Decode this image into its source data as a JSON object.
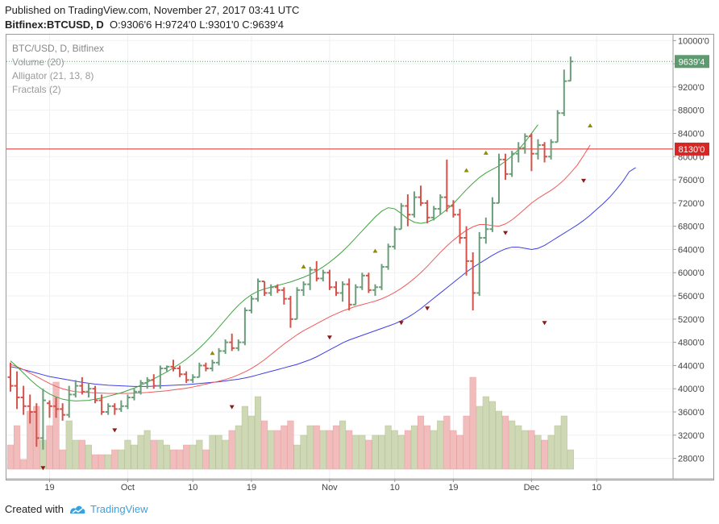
{
  "header": {
    "published": "Published on TradingView.com, November 27, 2017 03:41 UTC",
    "symbol": "Bitfinex:BTCUSD, D",
    "ohlc": "O:9306'6 H:9724'0 L:9301'0 C:9639'4"
  },
  "legend": {
    "title": "BTC/USD, D, Bitfinex",
    "items": [
      "Volume (20)",
      "Alligator (21, 13, 8)",
      "Fractals (2)"
    ]
  },
  "footer": {
    "created_with": "Created with",
    "brand": "TradingView"
  },
  "colors": {
    "up": "#6a9e7a",
    "down": "#d3534a",
    "jaw": "#3f3fe6",
    "teeth": "#f05a5a",
    "lips": "#3fa33f",
    "hline": "#d62626",
    "last": "#5e9a6f"
  },
  "chart_data": {
    "type": "bar",
    "title": "BTC/USD, D, Bitfinex",
    "y_ticks": [
      "10000'0",
      "9600'0",
      "9200'0",
      "8800'0",
      "8400'0",
      "8000'0",
      "7600'0",
      "7200'0",
      "6800'0",
      "6400'0",
      "6000'0",
      "5600'0",
      "5200'0",
      "4800'0",
      "4400'0",
      "4000'0",
      "3600'0",
      "3200'0",
      "2800'0"
    ],
    "x_ticks": [
      "19",
      "Oct",
      "10",
      "19",
      "Nov",
      "10",
      "19",
      "Dec",
      "10"
    ],
    "ylim": [
      2500,
      10050
    ],
    "x_tick_days": [
      6,
      18,
      28,
      37,
      49,
      59,
      68,
      80,
      90
    ],
    "price_labels": [
      {
        "text": "9639'4",
        "value": 9639,
        "color": "#5e9a6f"
      },
      {
        "text": "8130'0",
        "value": 8130,
        "color": "#d62626"
      }
    ],
    "horizontal_line": 8130,
    "ohlc": [
      [
        4200,
        4450,
        3950,
        4050
      ],
      [
        4050,
        4300,
        3650,
        3850
      ],
      [
        3850,
        4050,
        3550,
        3700
      ],
      [
        3700,
        3900,
        3400,
        3600
      ],
      [
        3600,
        3750,
        3000,
        3150
      ],
      [
        3150,
        4000,
        2950,
        3800
      ],
      [
        3750,
        3800,
        3500,
        3700
      ],
      [
        3700,
        3850,
        3500,
        3650
      ],
      [
        3650,
        3750,
        3450,
        3550
      ],
      [
        3550,
        4050,
        3500,
        3900
      ],
      [
        3900,
        4150,
        3850,
        4050
      ],
      [
        4050,
        4200,
        3900,
        3950
      ],
      [
        3950,
        4100,
        3850,
        4000
      ],
      [
        4000,
        4050,
        3750,
        3800
      ],
      [
        3800,
        3900,
        3550,
        3600
      ],
      [
        3600,
        3750,
        3550,
        3700
      ],
      [
        3700,
        3750,
        3550,
        3650
      ],
      [
        3650,
        3800,
        3600,
        3700
      ],
      [
        3700,
        3900,
        3650,
        3850
      ],
      [
        3850,
        4000,
        3800,
        3950
      ],
      [
        3950,
        4150,
        3900,
        4100
      ],
      [
        4100,
        4200,
        4000,
        4150
      ],
      [
        4150,
        4250,
        4000,
        4050
      ],
      [
        4050,
        4400,
        4000,
        4350
      ],
      [
        4350,
        4400,
        4300,
        4380
      ],
      [
        4380,
        4500,
        4300,
        4350
      ],
      [
        4350,
        4400,
        4200,
        4250
      ],
      [
        4250,
        4300,
        4100,
        4150
      ],
      [
        4150,
        4250,
        4100,
        4200
      ],
      [
        4200,
        4450,
        4200,
        4400
      ],
      [
        4400,
        4450,
        4300,
        4350
      ],
      [
        4350,
        4500,
        4300,
        4450
      ],
      [
        4450,
        4700,
        4400,
        4650
      ],
      [
        4650,
        4850,
        4600,
        4800
      ],
      [
        4800,
        4950,
        4650,
        4700
      ],
      [
        4700,
        4850,
        4650,
        4800
      ],
      [
        4800,
        5400,
        4750,
        5350
      ],
      [
        5350,
        5600,
        5300,
        5550
      ],
      [
        5550,
        5900,
        5500,
        5850
      ],
      [
        5850,
        5850,
        5600,
        5650
      ],
      [
        5650,
        5800,
        5600,
        5750
      ],
      [
        5750,
        5800,
        5650,
        5700
      ],
      [
        5700,
        5750,
        5450,
        5550
      ],
      [
        5550,
        5600,
        5050,
        5200
      ],
      [
        5200,
        5750,
        5200,
        5700
      ],
      [
        5700,
        5850,
        5600,
        5800
      ],
      [
        5800,
        6100,
        5700,
        6050
      ],
      [
        6050,
        6200,
        5850,
        5900
      ],
      [
        5900,
        6050,
        5850,
        6000
      ],
      [
        6000,
        6050,
        5700,
        5750
      ],
      [
        5750,
        5850,
        5600,
        5650
      ],
      [
        5650,
        5850,
        5500,
        5800
      ],
      [
        5800,
        5900,
        5350,
        5450
      ],
      [
        5450,
        5800,
        5450,
        5750
      ],
      [
        5750,
        6000,
        5700,
        5950
      ],
      [
        5950,
        6000,
        5650,
        5700
      ],
      [
        5700,
        5800,
        5600,
        5750
      ],
      [
        5750,
        6150,
        5700,
        6100
      ],
      [
        6100,
        6500,
        6050,
        6450
      ],
      [
        6450,
        6800,
        6400,
        6750
      ],
      [
        6750,
        7200,
        6750,
        7150
      ],
      [
        7150,
        7350,
        6800,
        7000
      ],
      [
        7000,
        7400,
        6950,
        7300
      ],
      [
        7300,
        7500,
        7150,
        7200
      ],
      [
        7200,
        7250,
        6850,
        6950
      ],
      [
        6950,
        7150,
        6900,
        7100
      ],
      [
        7100,
        7350,
        7000,
        7300
      ],
      [
        7300,
        7950,
        7050,
        7150
      ],
      [
        7150,
        7250,
        6950,
        7000
      ],
      [
        7000,
        7100,
        6500,
        6600
      ],
      [
        6600,
        6800,
        5950,
        6200
      ],
      [
        6200,
        6350,
        5350,
        5650
      ],
      [
        5650,
        6700,
        5600,
        6600
      ],
      [
        6600,
        6950,
        6500,
        6750
      ],
      [
        6750,
        7300,
        6700,
        7200
      ],
      [
        7200,
        8050,
        7200,
        7950
      ],
      [
        7950,
        8050,
        7600,
        7700
      ],
      [
        7700,
        8100,
        7650,
        8050
      ],
      [
        8050,
        8250,
        7900,
        8150
      ],
      [
        8150,
        8400,
        8050,
        8350
      ],
      [
        8350,
        8400,
        7750,
        8050
      ],
      [
        8050,
        8300,
        7950,
        8200
      ],
      [
        8200,
        8250,
        7900,
        8000
      ],
      [
        8000,
        8300,
        7950,
        8250
      ],
      [
        8250,
        8800,
        8250,
        8750
      ],
      [
        8750,
        9500,
        8700,
        9300
      ],
      [
        9306,
        9724,
        9301,
        9639
      ]
    ],
    "volume": [
      [
        50,
        1
      ],
      [
        90,
        1
      ],
      [
        20,
        1
      ],
      [
        120,
        1
      ],
      [
        130,
        1
      ],
      [
        60,
        1
      ],
      [
        90,
        1
      ],
      [
        180,
        1
      ],
      [
        40,
        1
      ],
      [
        100,
        1
      ],
      [
        60,
        1
      ],
      [
        60,
        1
      ],
      [
        50,
        1
      ],
      [
        30,
        1
      ],
      [
        30,
        1
      ],
      [
        30,
        1
      ],
      [
        40,
        1
      ],
      [
        40,
        1
      ],
      [
        60,
        1
      ],
      [
        50,
        1
      ],
      [
        70,
        1
      ],
      [
        80,
        1
      ],
      [
        60,
        1
      ],
      [
        60,
        1
      ],
      [
        50,
        1
      ],
      [
        40,
        1
      ],
      [
        40,
        1
      ],
      [
        50,
        1
      ],
      [
        50,
        1
      ],
      [
        60,
        1
      ],
      [
        40,
        1
      ],
      [
        70,
        1
      ],
      [
        70,
        1
      ],
      [
        60,
        1
      ],
      [
        80,
        1
      ],
      [
        90,
        1
      ],
      [
        130,
        1
      ],
      [
        110,
        1
      ],
      [
        150,
        1
      ],
      [
        100,
        1
      ],
      [
        80,
        1
      ],
      [
        80,
        1
      ],
      [
        90,
        1
      ],
      [
        100,
        1
      ],
      [
        50,
        1
      ],
      [
        70,
        1
      ],
      [
        90,
        1
      ],
      [
        90,
        1
      ],
      [
        80,
        1
      ],
      [
        80,
        1
      ],
      [
        90,
        1
      ],
      [
        100,
        1
      ],
      [
        80,
        1
      ],
      [
        70,
        1
      ],
      [
        70,
        1
      ],
      [
        60,
        1
      ],
      [
        70,
        1
      ],
      [
        70,
        1
      ],
      [
        90,
        1
      ],
      [
        80,
        1
      ],
      [
        70,
        1
      ],
      [
        80,
        1
      ],
      [
        90,
        1
      ],
      [
        110,
        1
      ],
      [
        90,
        1
      ],
      [
        80,
        1
      ],
      [
        100,
        1
      ],
      [
        110,
        1
      ],
      [
        80,
        1
      ],
      [
        70,
        1
      ],
      [
        110,
        1
      ],
      [
        190,
        1
      ],
      [
        130,
        1
      ],
      [
        150,
        1
      ],
      [
        140,
        1
      ],
      [
        120,
        1
      ],
      [
        110,
        1
      ],
      [
        100,
        1
      ],
      [
        90,
        1
      ],
      [
        80,
        1
      ],
      [
        80,
        1
      ],
      [
        70,
        1
      ],
      [
        60,
        1
      ],
      [
        70,
        1
      ],
      [
        90,
        1
      ],
      [
        110,
        1
      ],
      [
        40,
        1
      ]
    ],
    "series": [
      {
        "name": "Alligator jaw",
        "color": "#3f3fe6",
        "values": [
          4380,
          4360,
          4330,
          4300,
          4270,
          4240,
          4210,
          4190,
          4170,
          4150,
          4130,
          4110,
          4095,
          4080,
          4070,
          4060,
          4055,
          4050,
          4045,
          4040,
          4040,
          4040,
          4045,
          4050,
          4055,
          4060,
          4065,
          4070,
          4080,
          4090,
          4100,
          4110,
          4120,
          4135,
          4150,
          4165,
          4185,
          4210,
          4240,
          4270,
          4300,
          4330,
          4360,
          4390,
          4420,
          4460,
          4500,
          4550,
          4610,
          4670,
          4730,
          4790,
          4840,
          4880,
          4920,
          4960,
          5000,
          5040,
          5080,
          5120,
          5170,
          5230,
          5300,
          5380,
          5470,
          5560,
          5650,
          5740,
          5830,
          5920,
          6010,
          6090,
          6160,
          6230,
          6300,
          6360,
          6410,
          6440,
          6440,
          6420,
          6400,
          6420,
          6470,
          6540,
          6610,
          6680,
          6750,
          6820,
          6900,
          6990,
          7090,
          7190,
          7300,
          7430,
          7570,
          7740,
          7810
        ]
      },
      {
        "name": "Alligator teeth",
        "color": "#f05a5a",
        "values": [
          4420,
          4380,
          4330,
          4270,
          4210,
          4150,
          4090,
          4040,
          4000,
          3970,
          3950,
          3940,
          3935,
          3930,
          3925,
          3920,
          3920,
          3920,
          3920,
          3925,
          3930,
          3935,
          3945,
          3955,
          3965,
          3980,
          3995,
          4010,
          4030,
          4055,
          4080,
          4105,
          4130,
          4160,
          4195,
          4240,
          4290,
          4350,
          4420,
          4500,
          4590,
          4680,
          4770,
          4850,
          4930,
          5000,
          5060,
          5120,
          5180,
          5240,
          5290,
          5340,
          5380,
          5420,
          5450,
          5480,
          5510,
          5550,
          5600,
          5660,
          5730,
          5810,
          5900,
          6000,
          6110,
          6230,
          6350,
          6460,
          6560,
          6650,
          6730,
          6790,
          6830,
          6830,
          6810,
          6800,
          6840,
          6910,
          7000,
          7100,
          7200,
          7280,
          7350,
          7420,
          7500,
          7600,
          7720,
          7850,
          8020,
          8200
        ]
      },
      {
        "name": "Alligator lips",
        "color": "#3fa33f",
        "values": [
          4480,
          4380,
          4270,
          4160,
          4060,
          3980,
          3910,
          3860,
          3820,
          3800,
          3790,
          3795,
          3800,
          3820,
          3840,
          3870,
          3900,
          3930,
          3970,
          4010,
          4060,
          4110,
          4170,
          4230,
          4290,
          4360,
          4430,
          4510,
          4600,
          4700,
          4810,
          4930,
          5060,
          5190,
          5320,
          5440,
          5540,
          5620,
          5680,
          5720,
          5750,
          5780,
          5810,
          5840,
          5880,
          5920,
          5970,
          6030,
          6100,
          6180,
          6270,
          6370,
          6480,
          6600,
          6720,
          6840,
          6960,
          7060,
          7120,
          7100,
          7020,
          6930,
          6870,
          6850,
          6870,
          6920,
          7000,
          7090,
          7190,
          7310,
          7430,
          7540,
          7640,
          7720,
          7780,
          7840,
          7920,
          8010,
          8120,
          8250,
          8400,
          8550
        ]
      }
    ],
    "fractals_up": [
      [
        31,
        4500
      ],
      [
        45,
        5990
      ],
      [
        56,
        6260
      ],
      [
        70,
        7650
      ],
      [
        73,
        7950
      ],
      [
        89,
        8420
      ]
    ],
    "fractals_down": [
      [
        5,
        2750
      ],
      [
        16,
        3400
      ],
      [
        34,
        3800
      ],
      [
        49,
        5000
      ],
      [
        60,
        5250
      ],
      [
        64,
        5500
      ],
      [
        76,
        6800
      ],
      [
        82,
        5250
      ],
      [
        88,
        7700
      ]
    ]
  }
}
